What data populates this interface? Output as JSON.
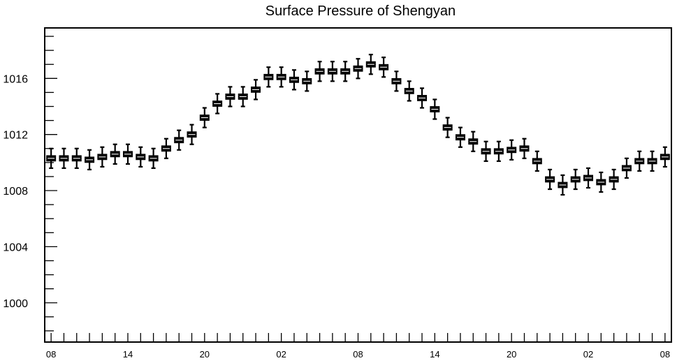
{
  "chart_data": {
    "type": "boxplot",
    "title": "Surface Pressure of Shengyan",
    "xlabel": "",
    "ylabel": "",
    "ylim": [
      997.2,
      1019.6
    ],
    "yticks": [
      1000,
      1004,
      1008,
      1012,
      1016
    ],
    "ytick_labels": [
      "1000",
      "1004",
      "1008",
      "1012",
      "1016"
    ],
    "xlim": [
      -0.5,
      48.5
    ],
    "xticks": [
      0,
      6,
      12,
      18,
      24,
      30,
      36,
      42,
      48
    ],
    "xtick_labels": [
      "08",
      "14",
      "20",
      "02",
      "08",
      "14",
      "20",
      "02",
      "08"
    ],
    "grid": false,
    "legend": "none",
    "box_color": "#000000",
    "median_color": "#ffffff",
    "series": [
      {
        "medians": [
          1010.3,
          1010.3,
          1010.3,
          1010.2,
          1010.4,
          1010.6,
          1010.6,
          1010.4,
          1010.3,
          1011.0,
          1011.6,
          1012.0,
          1013.2,
          1014.2,
          1014.7,
          1014.7,
          1015.2,
          1016.1,
          1016.1,
          1015.9,
          1015.8,
          1016.5,
          1016.5,
          1016.5,
          1016.7,
          1017.0,
          1016.8,
          1015.8,
          1015.1,
          1014.6,
          1013.8,
          1012.5,
          1011.8,
          1011.5,
          1010.8,
          1010.8,
          1010.9,
          1011.0,
          1010.1,
          1008.8,
          1008.4,
          1008.8,
          1008.9,
          1008.6,
          1008.8,
          1009.6,
          1010.1,
          1010.1,
          1010.4
        ]
      }
    ]
  }
}
